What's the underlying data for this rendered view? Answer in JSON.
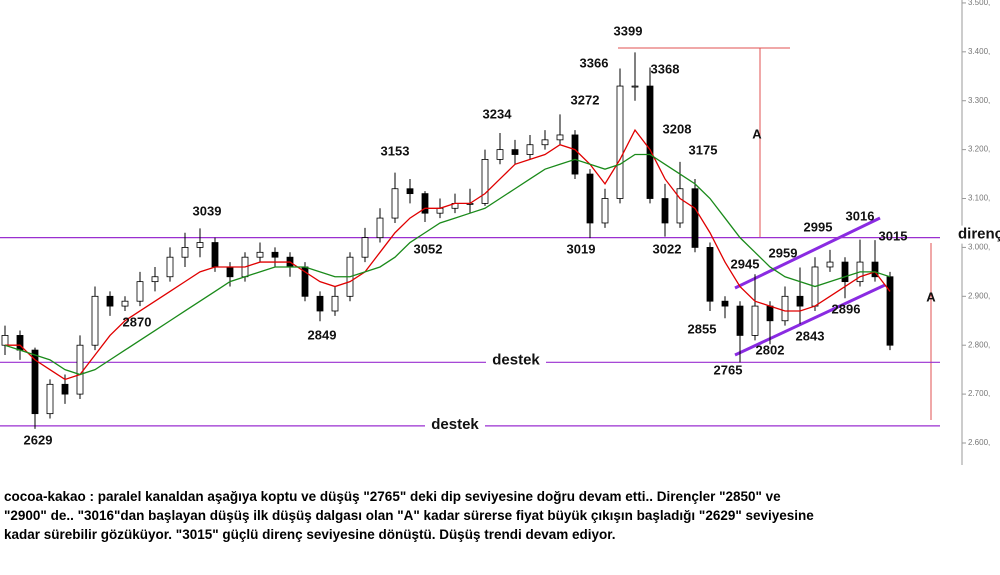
{
  "chart_data": {
    "type": "candlestick",
    "ylim": [
      2555,
      3506
    ],
    "yticks": [
      {
        "value": 2600,
        "label": "2.600,"
      },
      {
        "value": 2700,
        "label": "2.700,"
      },
      {
        "value": 2800,
        "label": "2.800,"
      },
      {
        "value": 2900,
        "label": "2.900,"
      },
      {
        "value": 3000,
        "label": "3.000,"
      },
      {
        "value": 3100,
        "label": "3.100,"
      },
      {
        "value": 3200,
        "label": "3.200,"
      },
      {
        "value": 3300,
        "label": "3.300,"
      },
      {
        "value": 3400,
        "label": "3.400,"
      },
      {
        "value": 3500,
        "label": "3.500,"
      }
    ],
    "up_color": "#ffffff",
    "down_color": "#000000",
    "candles": [
      [
        2800,
        2840,
        2780,
        2820
      ],
      [
        2820,
        2830,
        2770,
        2790
      ],
      [
        2790,
        2795,
        2629,
        2660
      ],
      [
        2660,
        2730,
        2650,
        2720
      ],
      [
        2720,
        2740,
        2680,
        2700
      ],
      [
        2700,
        2820,
        2690,
        2800
      ],
      [
        2800,
        2920,
        2790,
        2900
      ],
      [
        2900,
        2910,
        2860,
        2880
      ],
      [
        2880,
        2900,
        2870,
        2890
      ],
      [
        2890,
        2950,
        2880,
        2930
      ],
      [
        2930,
        2960,
        2910,
        2940
      ],
      [
        2940,
        3000,
        2930,
        2980
      ],
      [
        2980,
        3030,
        2960,
        3000
      ],
      [
        3000,
        3039,
        2980,
        3010
      ],
      [
        3010,
        3020,
        2950,
        2960
      ],
      [
        2960,
        2970,
        2920,
        2940
      ],
      [
        2940,
        2990,
        2930,
        2980
      ],
      [
        2980,
        3010,
        2970,
        2990
      ],
      [
        2990,
        3000,
        2960,
        2980
      ],
      [
        2980,
        2990,
        2940,
        2960
      ],
      [
        2960,
        2970,
        2890,
        2900
      ],
      [
        2900,
        2910,
        2849,
        2870
      ],
      [
        2870,
        2920,
        2860,
        2900
      ],
      [
        2900,
        2990,
        2890,
        2980
      ],
      [
        2980,
        3040,
        2970,
        3020
      ],
      [
        3020,
        3080,
        3010,
        3060
      ],
      [
        3060,
        3153,
        3050,
        3120
      ],
      [
        3120,
        3140,
        3090,
        3110
      ],
      [
        3110,
        3115,
        3052,
        3070
      ],
      [
        3070,
        3100,
        3060,
        3080
      ],
      [
        3080,
        3110,
        3070,
        3090
      ],
      [
        3090,
        3120,
        3070,
        3090
      ],
      [
        3090,
        3200,
        3085,
        3180
      ],
      [
        3180,
        3234,
        3170,
        3200
      ],
      [
        3200,
        3220,
        3170,
        3190
      ],
      [
        3190,
        3230,
        3180,
        3210
      ],
      [
        3210,
        3240,
        3200,
        3220
      ],
      [
        3220,
        3272,
        3210,
        3230
      ],
      [
        3230,
        3240,
        3140,
        3150
      ],
      [
        3150,
        3160,
        3019,
        3050
      ],
      [
        3050,
        3120,
        3040,
        3100
      ],
      [
        3100,
        3366,
        3090,
        3330
      ],
      [
        3330,
        3399,
        3300,
        3330
      ],
      [
        3330,
        3368,
        3090,
        3100
      ],
      [
        3100,
        3130,
        3022,
        3050
      ],
      [
        3050,
        3175,
        3040,
        3120
      ],
      [
        3120,
        3140,
        2990,
        3000
      ],
      [
        3000,
        3010,
        2870,
        2890
      ],
      [
        2890,
        2900,
        2855,
        2880
      ],
      [
        2880,
        2890,
        2765,
        2820
      ],
      [
        2820,
        2945,
        2810,
        2880
      ],
      [
        2880,
        2890,
        2802,
        2850
      ],
      [
        2850,
        2920,
        2840,
        2900
      ],
      [
        2900,
        2959,
        2843,
        2880
      ],
      [
        2880,
        2980,
        2870,
        2960
      ],
      [
        2960,
        2995,
        2950,
        2970
      ],
      [
        2970,
        2980,
        2896,
        2930
      ],
      [
        2930,
        3016,
        2920,
        2970
      ],
      [
        2970,
        3015,
        2930,
        2940
      ],
      [
        2940,
        2950,
        2790,
        2800
      ]
    ],
    "averages": [
      {
        "color": "#e00000",
        "values": [
          2800,
          2800,
          2770,
          2750,
          2730,
          2740,
          2780,
          2820,
          2850,
          2870,
          2890,
          2910,
          2930,
          2950,
          2960,
          2960,
          2960,
          2970,
          2970,
          2970,
          2950,
          2930,
          2920,
          2930,
          2950,
          2990,
          3030,
          3060,
          3080,
          3080,
          3090,
          3090,
          3110,
          3140,
          3170,
          3180,
          3190,
          3210,
          3200,
          3170,
          3130,
          3180,
          3240,
          3200,
          3140,
          3100,
          3080,
          3030,
          2970,
          2920,
          2890,
          2880,
          2870,
          2870,
          2880,
          2900,
          2920,
          2940,
          2950,
          2910
        ]
      },
      {
        "color": "#1a8a1a",
        "values": [
          2800,
          2790,
          2780,
          2770,
          2750,
          2740,
          2750,
          2770,
          2790,
          2810,
          2830,
          2850,
          2870,
          2890,
          2910,
          2930,
          2940,
          2950,
          2960,
          2960,
          2960,
          2950,
          2940,
          2940,
          2950,
          2960,
          2980,
          3010,
          3030,
          3050,
          3060,
          3070,
          3080,
          3100,
          3120,
          3140,
          3160,
          3170,
          3180,
          3170,
          3160,
          3170,
          3190,
          3190,
          3170,
          3150,
          3130,
          3100,
          3060,
          3020,
          2990,
          2960,
          2940,
          2930,
          2920,
          2930,
          2940,
          2950,
          2950,
          2940
        ]
      }
    ],
    "levels": [
      {
        "value": 3020,
        "label": "direnç"
      },
      {
        "value": 2765,
        "label": "destek"
      },
      {
        "value": 2635,
        "label": "destek"
      }
    ],
    "level_color": "#9a2fd0",
    "annotations": [
      "3399",
      "3366",
      "3368",
      "3272",
      "3234",
      "3208",
      "3175",
      "3153",
      "3039",
      "2995",
      "3016",
      "3015",
      "3052",
      "3019",
      "3022",
      "2959",
      "2945",
      "2870",
      "2855",
      "2849",
      "2843",
      "2896",
      "2802",
      "2765",
      "2629",
      "A",
      "A"
    ],
    "caption": [
      "cocoa-kakao : paralel kanaldan aşağıya koptu ve düşüş \"2765\" deki dip seviyesine doğru devam etti.. Dirençler \"2850\" ve",
      "\"2900\" de.. \"3016\"dan başlayan düşüş ilk düşüş dalgası olan \"A\" kadar sürerse fiyat büyük çıkışın başladığı \"2629\" seviyesine",
      "kadar sürebilir gözüküyor. \"3015\" güçlü direnç seviyesine dönüştü. Düşüş trendi devam ediyor."
    ]
  }
}
